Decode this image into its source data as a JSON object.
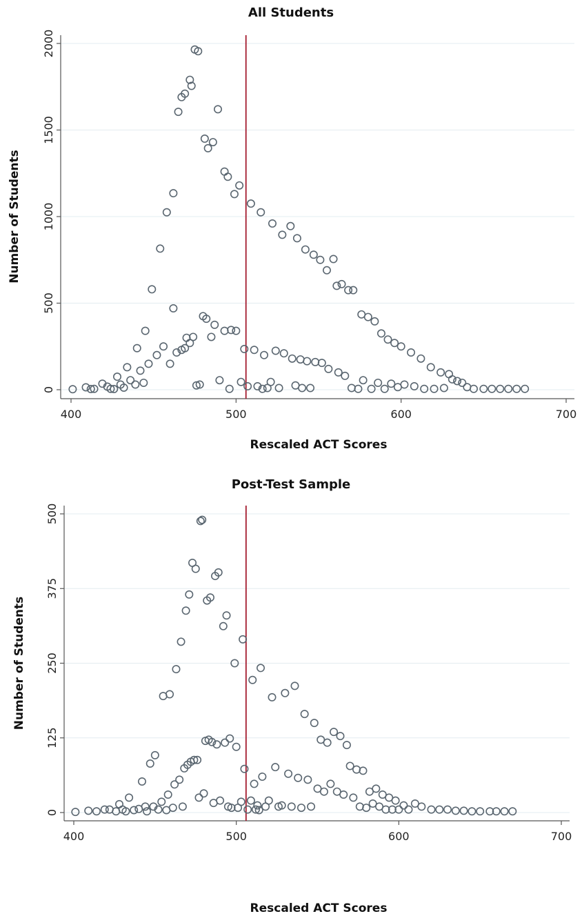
{
  "chart_data": [
    {
      "type": "scatter",
      "title": "All Students",
      "xlabel": "Rescaled ACT Scores",
      "ylabel": "Number of Students",
      "xlim": [
        400,
        700
      ],
      "ylim": [
        0,
        2000
      ],
      "xticks": [
        400,
        500,
        600,
        700
      ],
      "yticks": [
        0,
        500,
        1000,
        1500,
        2000
      ],
      "grid": true,
      "reference_line_x": 506,
      "reference_color": "#a3192c",
      "marker_color": "#5a6670",
      "points": [
        [
          401,
          3
        ],
        [
          409,
          14
        ],
        [
          412,
          4
        ],
        [
          414,
          5
        ],
        [
          419,
          35
        ],
        [
          422,
          18
        ],
        [
          424,
          5
        ],
        [
          426,
          4
        ],
        [
          428,
          75
        ],
        [
          430,
          30
        ],
        [
          432,
          12
        ],
        [
          434,
          130
        ],
        [
          436,
          55
        ],
        [
          439,
          30
        ],
        [
          440,
          240
        ],
        [
          442,
          110
        ],
        [
          444,
          40
        ],
        [
          445,
          340
        ],
        [
          447,
          150
        ],
        [
          449,
          580
        ],
        [
          452,
          200
        ],
        [
          454,
          815
        ],
        [
          456,
          250
        ],
        [
          458,
          1025
        ],
        [
          460,
          150
        ],
        [
          462,
          470
        ],
        [
          462,
          1135
        ],
        [
          464,
          215
        ],
        [
          465,
          1605
        ],
        [
          467,
          230
        ],
        [
          467,
          1690
        ],
        [
          469,
          240
        ],
        [
          469,
          1710
        ],
        [
          470,
          300
        ],
        [
          472,
          1790
        ],
        [
          472,
          270
        ],
        [
          473,
          1755
        ],
        [
          474,
          305
        ],
        [
          475,
          1965
        ],
        [
          477,
          1955
        ],
        [
          476,
          25
        ],
        [
          478,
          30
        ],
        [
          480,
          425
        ],
        [
          481,
          1450
        ],
        [
          482,
          410
        ],
        [
          483,
          1395
        ],
        [
          485,
          305
        ],
        [
          486,
          1430
        ],
        [
          487,
          375
        ],
        [
          489,
          1620
        ],
        [
          490,
          55
        ],
        [
          493,
          1260
        ],
        [
          493,
          340
        ],
        [
          495,
          1230
        ],
        [
          496,
          5
        ],
        [
          497,
          345
        ],
        [
          499,
          1130
        ],
        [
          500,
          340
        ],
        [
          502,
          1180
        ],
        [
          503,
          45
        ],
        [
          505,
          235
        ],
        [
          507,
          20
        ],
        [
          509,
          1075
        ],
        [
          511,
          230
        ],
        [
          513,
          20
        ],
        [
          515,
          1025
        ],
        [
          516,
          5
        ],
        [
          517,
          200
        ],
        [
          519,
          10
        ],
        [
          521,
          45
        ],
        [
          522,
          960
        ],
        [
          524,
          225
        ],
        [
          526,
          10
        ],
        [
          528,
          895
        ],
        [
          529,
          210
        ],
        [
          533,
          945
        ],
        [
          534,
          180
        ],
        [
          536,
          25
        ],
        [
          537,
          875
        ],
        [
          539,
          175
        ],
        [
          540,
          10
        ],
        [
          542,
          810
        ],
        [
          543,
          165
        ],
        [
          545,
          10
        ],
        [
          547,
          780
        ],
        [
          548,
          160
        ],
        [
          551,
          750
        ],
        [
          552,
          155
        ],
        [
          555,
          690
        ],
        [
          556,
          120
        ],
        [
          559,
          755
        ],
        [
          561,
          600
        ],
        [
          562,
          100
        ],
        [
          564,
          610
        ],
        [
          566,
          80
        ],
        [
          568,
          575
        ],
        [
          570,
          10
        ],
        [
          571,
          575
        ],
        [
          574,
          5
        ],
        [
          576,
          435
        ],
        [
          577,
          55
        ],
        [
          580,
          420
        ],
        [
          582,
          5
        ],
        [
          584,
          395
        ],
        [
          586,
          40
        ],
        [
          588,
          325
        ],
        [
          590,
          5
        ],
        [
          592,
          290
        ],
        [
          594,
          35
        ],
        [
          596,
          270
        ],
        [
          598,
          15
        ],
        [
          600,
          250
        ],
        [
          602,
          30
        ],
        [
          606,
          215
        ],
        [
          608,
          20
        ],
        [
          612,
          180
        ],
        [
          614,
          5
        ],
        [
          618,
          130
        ],
        [
          620,
          5
        ],
        [
          624,
          100
        ],
        [
          626,
          10
        ],
        [
          629,
          90
        ],
        [
          631,
          60
        ],
        [
          634,
          50
        ],
        [
          637,
          40
        ],
        [
          640,
          15
        ],
        [
          644,
          5
        ],
        [
          650,
          5
        ],
        [
          655,
          5
        ],
        [
          660,
          5
        ],
        [
          665,
          5
        ],
        [
          670,
          5
        ],
        [
          675,
          5
        ]
      ]
    },
    {
      "type": "scatter",
      "title": "Post-Test Sample",
      "xlabel": "Rescaled ACT Scores",
      "ylabel": "Number of Students",
      "xlim": [
        400,
        700
      ],
      "ylim": [
        0,
        500
      ],
      "xticks": [
        400,
        500,
        600,
        700
      ],
      "yticks": [
        0,
        125,
        250,
        375,
        500
      ],
      "grid": true,
      "reference_line_x": 506,
      "reference_color": "#a3192c",
      "marker_color": "#5a6670",
      "points": [
        [
          401,
          1
        ],
        [
          409,
          3
        ],
        [
          414,
          2
        ],
        [
          419,
          5
        ],
        [
          422,
          5
        ],
        [
          426,
          2
        ],
        [
          428,
          14
        ],
        [
          430,
          5
        ],
        [
          432,
          2
        ],
        [
          434,
          25
        ],
        [
          437,
          4
        ],
        [
          440,
          6
        ],
        [
          442,
          52
        ],
        [
          444,
          10
        ],
        [
          445,
          2
        ],
        [
          447,
          82
        ],
        [
          449,
          10
        ],
        [
          450,
          96
        ],
        [
          452,
          5
        ],
        [
          454,
          18
        ],
        [
          455,
          195
        ],
        [
          457,
          4
        ],
        [
          458,
          30
        ],
        [
          459,
          198
        ],
        [
          461,
          8
        ],
        [
          462,
          47
        ],
        [
          463,
          240
        ],
        [
          465,
          55
        ],
        [
          466,
          286
        ],
        [
          467,
          10
        ],
        [
          468,
          74
        ],
        [
          469,
          338
        ],
        [
          470,
          80
        ],
        [
          471,
          365
        ],
        [
          472,
          85
        ],
        [
          473,
          418
        ],
        [
          474,
          88
        ],
        [
          475,
          408
        ],
        [
          476,
          88
        ],
        [
          477,
          25
        ],
        [
          478,
          488
        ],
        [
          479,
          490
        ],
        [
          480,
          32
        ],
        [
          481,
          120
        ],
        [
          482,
          355
        ],
        [
          483,
          122
        ],
        [
          484,
          360
        ],
        [
          485,
          118
        ],
        [
          486,
          16
        ],
        [
          487,
          396
        ],
        [
          488,
          114
        ],
        [
          489,
          402
        ],
        [
          490,
          20
        ],
        [
          492,
          312
        ],
        [
          493,
          117
        ],
        [
          494,
          330
        ],
        [
          495,
          10
        ],
        [
          496,
          124
        ],
        [
          497,
          8
        ],
        [
          499,
          250
        ],
        [
          500,
          110
        ],
        [
          501,
          8
        ],
        [
          503,
          18
        ],
        [
          504,
          290
        ],
        [
          505,
          73
        ],
        [
          507,
          5
        ],
        [
          509,
          20
        ],
        [
          510,
          222
        ],
        [
          511,
          48
        ],
        [
          512,
          5
        ],
        [
          513,
          12
        ],
        [
          514,
          4
        ],
        [
          515,
          242
        ],
        [
          516,
          60
        ],
        [
          518,
          10
        ],
        [
          520,
          20
        ],
        [
          522,
          193
        ],
        [
          524,
          76
        ],
        [
          526,
          10
        ],
        [
          528,
          12
        ],
        [
          530,
          200
        ],
        [
          532,
          65
        ],
        [
          534,
          10
        ],
        [
          536,
          212
        ],
        [
          538,
          58
        ],
        [
          540,
          8
        ],
        [
          542,
          165
        ],
        [
          544,
          55
        ],
        [
          546,
          10
        ],
        [
          548,
          150
        ],
        [
          550,
          40
        ],
        [
          552,
          122
        ],
        [
          554,
          35
        ],
        [
          556,
          117
        ],
        [
          558,
          48
        ],
        [
          560,
          135
        ],
        [
          562,
          35
        ],
        [
          564,
          128
        ],
        [
          566,
          30
        ],
        [
          568,
          113
        ],
        [
          570,
          78
        ],
        [
          572,
          25
        ],
        [
          574,
          72
        ],
        [
          576,
          10
        ],
        [
          578,
          70
        ],
        [
          580,
          8
        ],
        [
          582,
          35
        ],
        [
          584,
          15
        ],
        [
          586,
          40
        ],
        [
          588,
          10
        ],
        [
          590,
          30
        ],
        [
          592,
          5
        ],
        [
          594,
          25
        ],
        [
          596,
          5
        ],
        [
          598,
          20
        ],
        [
          600,
          5
        ],
        [
          603,
          12
        ],
        [
          606,
          5
        ],
        [
          610,
          15
        ],
        [
          614,
          10
        ],
        [
          620,
          5
        ],
        [
          625,
          5
        ],
        [
          630,
          5
        ],
        [
          635,
          3
        ],
        [
          640,
          3
        ],
        [
          645,
          2
        ],
        [
          650,
          2
        ],
        [
          656,
          2
        ],
        [
          660,
          2
        ],
        [
          665,
          2
        ],
        [
          670,
          2
        ]
      ]
    }
  ]
}
